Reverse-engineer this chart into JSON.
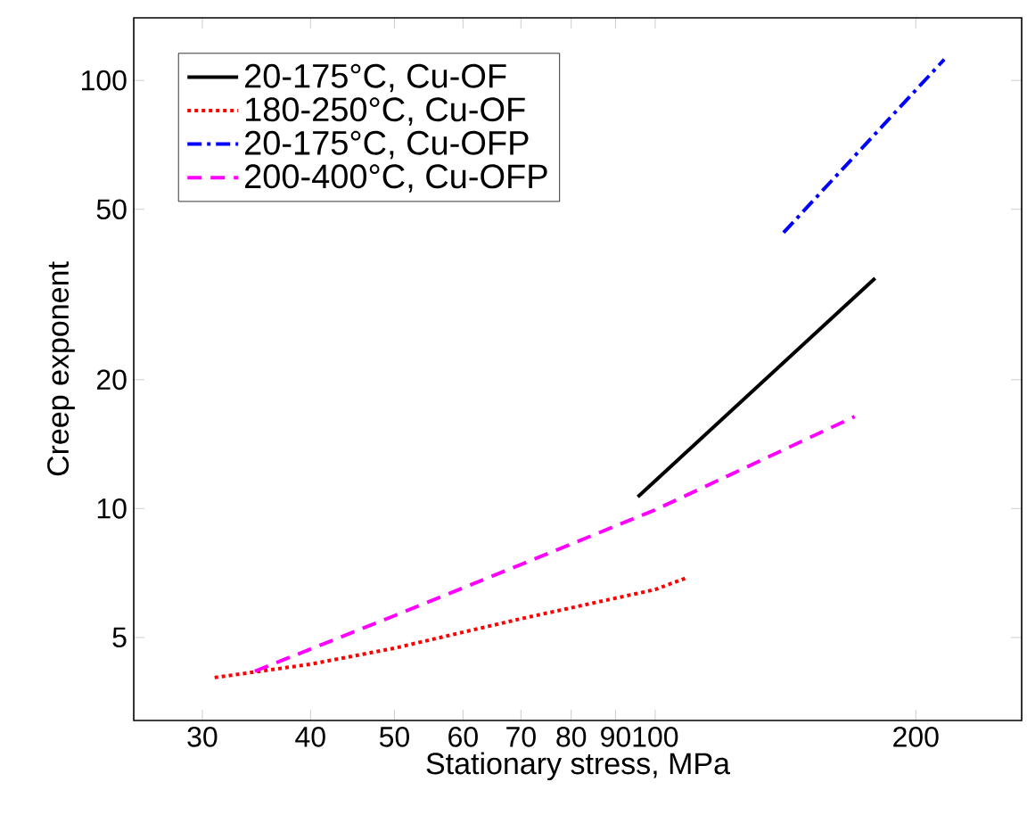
{
  "chart_data": {
    "type": "line",
    "xlabel": "Stationary stress, MPa",
    "ylabel": "Creep exponent",
    "log": "xy",
    "legend": "top left",
    "grid": false,
    "xlim": [
      25,
      265
    ],
    "ylim": [
      3.2,
      140
    ],
    "xticks": [
      30,
      40,
      50,
      60,
      70,
      80,
      90,
      100,
      200
    ],
    "yticks": [
      5,
      10,
      20,
      50,
      100
    ],
    "series": [
      {
        "name": "20-175°C, Cu-OF",
        "color": "#000000",
        "line_style": "solid",
        "x": [
          95.5,
          179.5
        ],
        "values": [
          10.65,
          34.5
        ]
      },
      {
        "name": "180-250°C, Cu-OF",
        "color": "#ff0000",
        "line_style": "dotted",
        "x": [
          31,
          40,
          50,
          70,
          100,
          108.7
        ],
        "values": [
          4.03,
          4.33,
          4.72,
          5.53,
          6.47,
          6.89
        ]
      },
      {
        "name": "20-175°C, Cu-OFP",
        "color": "#0000ff",
        "line_style": "dashdot",
        "x": [
          140.7,
          215.7
        ],
        "values": [
          44.1,
          111.9
        ]
      },
      {
        "name": "200-400°C, Cu-OFP",
        "color": "#ff00ff",
        "line_style": "dashed",
        "x": [
          34.5,
          50,
          70,
          100,
          170
        ],
        "values": [
          4.17,
          5.62,
          7.4,
          9.93,
          16.4
        ]
      }
    ]
  }
}
